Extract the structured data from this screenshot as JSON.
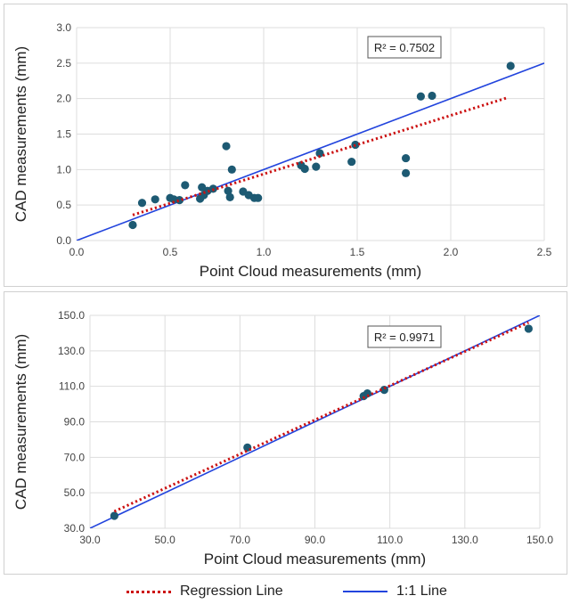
{
  "chart_data": [
    {
      "type": "scatter",
      "xlabel": "Point Cloud measurements (mm)",
      "ylabel": "CAD measurements (mm)",
      "xlim": [
        0.0,
        2.5
      ],
      "ylim": [
        0.0,
        3.0
      ],
      "x_ticks": [
        "0.0",
        "0.5",
        "1.0",
        "1.5",
        "2.0",
        "2.5"
      ],
      "y_ticks": [
        "0.0",
        "0.5",
        "1.0",
        "1.5",
        "2.0",
        "2.5",
        "3.0"
      ],
      "grid": true,
      "annotation": "R² = 0.7502",
      "regression": {
        "x": [
          0.3,
          2.3
        ],
        "y": [
          0.36,
          2.01
        ]
      },
      "identity": {
        "x": [
          0.0,
          2.5
        ],
        "y": [
          0.0,
          2.5
        ]
      },
      "points": [
        [
          0.3,
          0.22
        ],
        [
          0.35,
          0.53
        ],
        [
          0.42,
          0.58
        ],
        [
          0.5,
          0.6
        ],
        [
          0.52,
          0.58
        ],
        [
          0.55,
          0.57
        ],
        [
          0.58,
          0.78
        ],
        [
          0.66,
          0.59
        ],
        [
          0.67,
          0.75
        ],
        [
          0.68,
          0.64
        ],
        [
          0.7,
          0.7
        ],
        [
          0.73,
          0.73
        ],
        [
          0.8,
          1.33
        ],
        [
          0.81,
          0.7
        ],
        [
          0.82,
          0.61
        ],
        [
          0.83,
          1.0
        ],
        [
          0.89,
          0.69
        ],
        [
          0.92,
          0.64
        ],
        [
          0.95,
          0.6
        ],
        [
          0.97,
          0.6
        ],
        [
          1.2,
          1.06
        ],
        [
          1.22,
          1.01
        ],
        [
          1.28,
          1.04
        ],
        [
          1.3,
          1.23
        ],
        [
          1.47,
          1.11
        ],
        [
          1.49,
          1.35
        ],
        [
          1.76,
          1.16
        ],
        [
          1.76,
          0.95
        ],
        [
          1.84,
          2.03
        ],
        [
          1.9,
          2.04
        ],
        [
          2.32,
          2.46
        ]
      ]
    },
    {
      "type": "scatter",
      "xlabel": "Point Cloud measurements (mm)",
      "ylabel": "CAD measurements (mm)",
      "xlim": [
        30.0,
        150.0
      ],
      "ylim": [
        30.0,
        150.0
      ],
      "x_ticks": [
        "30.0",
        "50.0",
        "70.0",
        "90.0",
        "110.0",
        "130.0",
        "150.0"
      ],
      "y_ticks": [
        "30.0",
        "50.0",
        "70.0",
        "90.0",
        "110.0",
        "130.0",
        "150.0"
      ],
      "grid": true,
      "annotation": "R² = 0.9971",
      "regression": {
        "x": [
          36.5,
          147.0
        ],
        "y": [
          39.5,
          146.0
        ]
      },
      "identity": {
        "x": [
          30.0,
          150.0
        ],
        "y": [
          30.0,
          150.0
        ]
      },
      "points": [
        [
          36.5,
          37.0
        ],
        [
          72.0,
          75.5
        ],
        [
          103.0,
          104.5
        ],
        [
          104.0,
          106.0
        ],
        [
          108.5,
          108.0
        ],
        [
          147.0,
          142.5
        ]
      ]
    }
  ],
  "legend": {
    "regression_label": "Regression Line",
    "identity_label": "1:1 Line"
  },
  "colors": {
    "points": "#1d5a73",
    "regression": "#cc1111",
    "identity": "#2244dd",
    "grid": "#dddddd",
    "text": "#222222"
  }
}
